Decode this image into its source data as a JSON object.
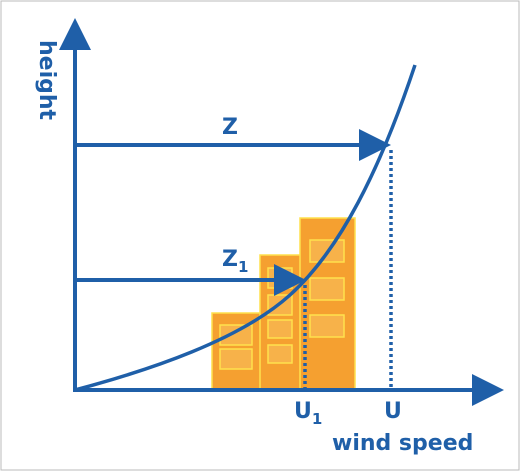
{
  "axes": {
    "y_label": "height",
    "x_label": "wind speed"
  },
  "labels": {
    "z": "Z",
    "z1": {
      "base": "Z",
      "subscript": "1"
    },
    "u1": {
      "base": "U",
      "subscript": "1"
    },
    "u": "U"
  }
}
